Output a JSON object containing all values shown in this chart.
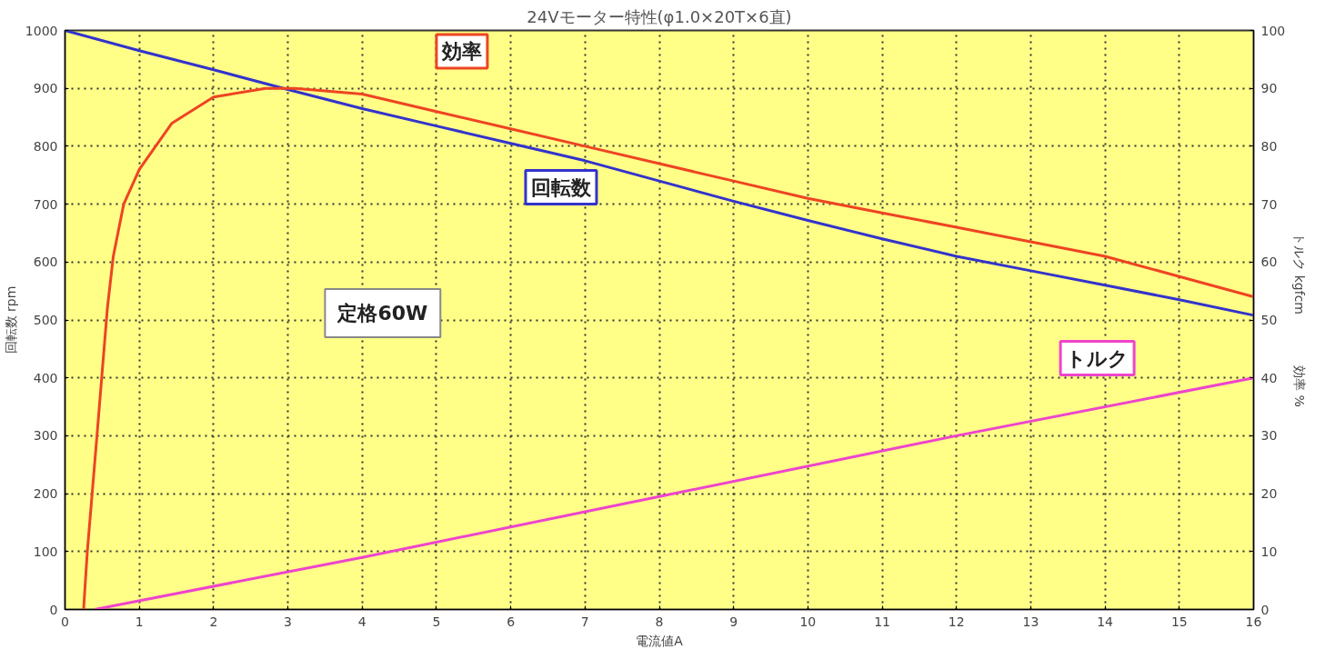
{
  "chart_data": {
    "type": "line",
    "title": "24Vモーター特性(φ1.0×20T×6直)",
    "xlabel": "電流値A",
    "ylabel": "回転数 rpm",
    "y2label": "トルク kgfcm　　　　効率 %",
    "series": [
      {
        "name": "回転数",
        "color": "#3333cc",
        "x": [
          0,
          1,
          2,
          3,
          4,
          5,
          6,
          7,
          8,
          9,
          10,
          11,
          12,
          13,
          14,
          15,
          16
        ],
        "values": [
          1000,
          965,
          932,
          898,
          865,
          835,
          805,
          775,
          740,
          705,
          672,
          640,
          610,
          585,
          560,
          535,
          508
        ]
      },
      {
        "name": "効率",
        "color": "#ee4422",
        "axis": "y2",
        "x": [
          0.25,
          0.3,
          0.43,
          0.57,
          0.65,
          0.79,
          1.0,
          1.44,
          2.0,
          2.7,
          3.1,
          4,
          5,
          6,
          7,
          8,
          9,
          10,
          11,
          12,
          13,
          14,
          15,
          16
        ],
        "values": [
          0,
          10,
          30,
          52,
          61,
          70,
          76,
          84,
          88.5,
          90,
          90,
          89,
          86,
          83,
          80,
          77,
          74,
          71,
          68.5,
          66,
          63.5,
          61,
          57.5,
          54
        ]
      },
      {
        "name": "トルク",
        "color": "#ee44cc",
        "axis": "y2",
        "x": [
          0.4,
          4,
          8,
          12,
          16
        ],
        "values": [
          0,
          9,
          19.5,
          30,
          40
        ]
      }
    ],
    "annotations": [
      "定格60W"
    ],
    "xlim": [
      0,
      16
    ],
    "xticks": [
      0,
      1,
      2,
      3,
      4,
      5,
      6,
      7,
      8,
      9,
      10,
      11,
      12,
      13,
      14,
      15,
      16
    ],
    "ylim": [
      0,
      1000
    ],
    "yticks": [
      0,
      100,
      200,
      300,
      400,
      500,
      600,
      700,
      800,
      900,
      1000
    ],
    "y2lim": [
      0,
      100
    ],
    "y2ticks": [
      0,
      10,
      20,
      30,
      40,
      50,
      60,
      70,
      80,
      90,
      100
    ],
    "grid": true,
    "marker": "none",
    "line_style": "solid"
  }
}
